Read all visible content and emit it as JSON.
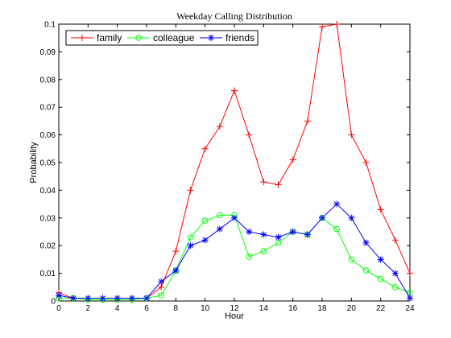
{
  "chart_data": {
    "type": "line",
    "title": "Weekday Calling Distribution",
    "xlabel": "Hour",
    "ylabel": "Probability",
    "xlim": [
      0,
      24
    ],
    "ylim": [
      0,
      0.1
    ],
    "xticks": [
      0,
      2,
      4,
      6,
      8,
      10,
      12,
      14,
      16,
      18,
      20,
      22,
      24
    ],
    "xtick_labels": [
      "0",
      "2",
      "4",
      "6",
      "8",
      "10",
      "12",
      "14",
      "16",
      "18",
      "20",
      "22",
      "24"
    ],
    "yticks": [
      0,
      0.01,
      0.02,
      0.03,
      0.04,
      0.05,
      0.06,
      0.07,
      0.08,
      0.09,
      0.1
    ],
    "ytick_labels": [
      "0",
      "0.01",
      "0.02",
      "0.03",
      "0.04",
      "0.05",
      "0.06",
      "0.07",
      "0.08",
      "0.09",
      "0.1"
    ],
    "grid": false,
    "legend_position": "top-left",
    "x": [
      0,
      1,
      2,
      3,
      4,
      5,
      6,
      7,
      8,
      9,
      10,
      11,
      12,
      13,
      14,
      15,
      16,
      17,
      18,
      19,
      20,
      21,
      22,
      23,
      24
    ],
    "series": [
      {
        "name": "family",
        "color": "#ff0000",
        "marker": "plus",
        "values": [
          0.003,
          0.001,
          0.001,
          0.001,
          0.001,
          0.001,
          0.001,
          0.005,
          0.018,
          0.04,
          0.055,
          0.063,
          0.076,
          0.06,
          0.043,
          0.042,
          0.051,
          0.065,
          0.099,
          0.1,
          0.06,
          0.05,
          0.033,
          0.022,
          0.01
        ]
      },
      {
        "name": "colleague",
        "color": "#00ff00",
        "marker": "circle",
        "values": [
          0.001,
          0.001,
          0.0005,
          0.0005,
          0.0005,
          0.0005,
          0.001,
          0.002,
          0.011,
          0.023,
          0.029,
          0.031,
          0.031,
          0.016,
          0.018,
          0.021,
          0.025,
          0.024,
          0.03,
          0.026,
          0.015,
          0.011,
          0.008,
          0.005,
          0.003
        ]
      },
      {
        "name": "friends",
        "color": "#0000ff",
        "marker": "asterisk",
        "values": [
          0.002,
          0.001,
          0.001,
          0.001,
          0.001,
          0.001,
          0.001,
          0.007,
          0.011,
          0.02,
          0.022,
          0.026,
          0.03,
          0.025,
          0.024,
          0.023,
          0.025,
          0.024,
          0.03,
          0.035,
          0.03,
          0.021,
          0.015,
          0.01,
          0.001
        ]
      }
    ]
  }
}
